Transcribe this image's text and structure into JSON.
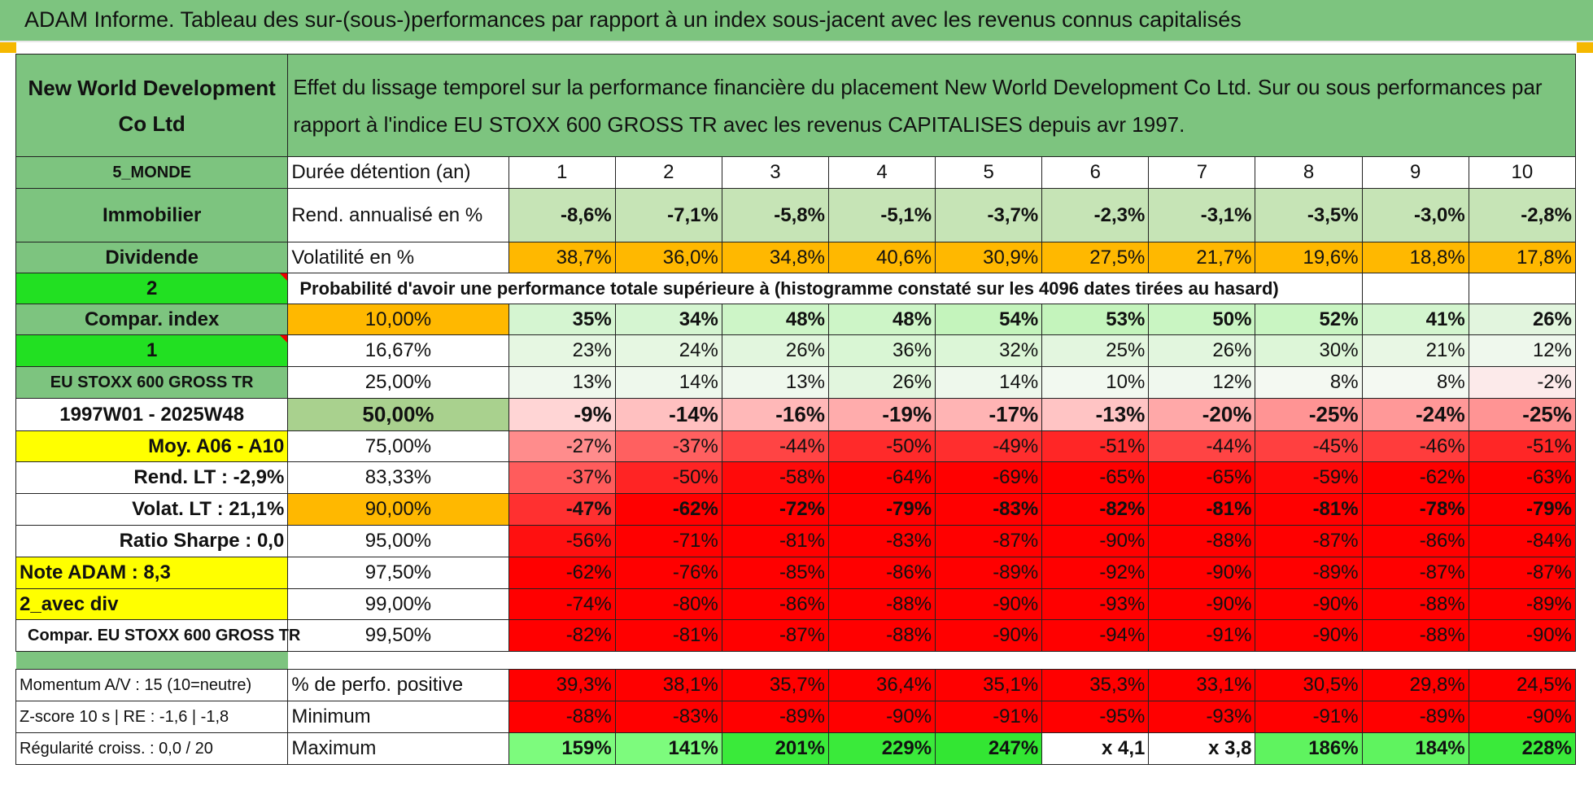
{
  "title": "ADAM Informe. Tableau des sur-(sous-)performances par rapport à un index sous-jacent avec les revenus connus capitalisés",
  "company": "New World Development Co Ltd",
  "description": "Effet du lissage temporel sur la performance financière du placement New World Development Co Ltd. Sur ou sous performances par rapport à l'indice EU STOXX 600 GROSS TR avec les revenus CAPITALISES depuis avr 1997.",
  "left": {
    "region": "5_MONDE",
    "sector": "Immobilier",
    "dividend": "Dividende",
    "selector1": "2",
    "compar_label": "Compar. index",
    "selector2": "1",
    "index_name": "EU STOXX 600 GROSS TR",
    "period": "1997W01 - 2025W48",
    "moy": "Moy. A06 - A10",
    "rend_lt": "Rend. LT :   -2,9%",
    "volat_lt": "Volat. LT :   21,1%",
    "sharpe": "Ratio Sharpe :    0,0",
    "note": "Note ADAM : 8,3",
    "avec_div": "2_avec div",
    "compar_full": "Compar. EU STOXX 600 GROSS TR",
    "momentum": "Momentum A/V : 15 (10=neutre)",
    "zscore": "Z-score 10 s | RE : -1,6 | -1,8",
    "regularite": "Régularité croiss. : 0,0 / 20"
  },
  "header": {
    "duree_label": "Durée détention (an)",
    "years": [
      "1",
      "2",
      "3",
      "4",
      "5",
      "6",
      "7",
      "8",
      "9",
      "10"
    ]
  },
  "rend": {
    "label": "Rend. annualisé en %",
    "values": [
      "-8,6%",
      "-7,1%",
      "-5,8%",
      "-5,1%",
      "-3,7%",
      "-2,3%",
      "-3,1%",
      "-3,5%",
      "-3,0%",
      "-2,8%"
    ]
  },
  "vol": {
    "label": "Volatilité en %",
    "values": [
      "38,7%",
      "36,0%",
      "34,8%",
      "40,6%",
      "30,9%",
      "27,5%",
      "21,7%",
      "19,6%",
      "18,8%",
      "17,8%"
    ]
  },
  "prob_label": "Probabilité d'avoir une performance totale supérieure à (histogramme constaté sur les 4096 dates tirées au hasard)",
  "quantiles": [
    {
      "pct": "10,00%",
      "values": [
        "35%",
        "34%",
        "48%",
        "48%",
        "54%",
        "53%",
        "50%",
        "52%",
        "41%",
        "26%"
      ],
      "bg": [
        "#d5f5d1",
        "#d5f5d1",
        "#cdf5c7",
        "#cdf5c7",
        "#c4f4bc",
        "#c4f4bc",
        "#c9f5c2",
        "#c9f5c2",
        "#d3f5ce",
        "#e2f5de"
      ]
    },
    {
      "pct": "16,67%",
      "values": [
        "23%",
        "24%",
        "26%",
        "36%",
        "32%",
        "25%",
        "26%",
        "30%",
        "21%",
        "12%"
      ],
      "bg": [
        "#e6f7e2",
        "#e6f7e2",
        "#e2f6de",
        "#d9f6d4",
        "#dcf6d7",
        "#e3f6df",
        "#e2f6de",
        "#ddf6d8",
        "#e8f7e4",
        "#eff8ed"
      ]
    },
    {
      "pct": "25,00%",
      "values": [
        "13%",
        "14%",
        "13%",
        "26%",
        "14%",
        "10%",
        "12%",
        "8%",
        "8%",
        "-2%"
      ],
      "bg": [
        "#eff8ed",
        "#eef8ec",
        "#eff8ed",
        "#e2f6de",
        "#eef8ec",
        "#f2f9f0",
        "#f0f8ee",
        "#f4f9f2",
        "#f4f9f2",
        "#fceaea"
      ]
    },
    {
      "pct": "50,00%",
      "values": [
        "-9%",
        "-14%",
        "-16%",
        "-19%",
        "-17%",
        "-13%",
        "-20%",
        "-25%",
        "-24%",
        "-25%"
      ],
      "bg": [
        "#ffd5d5",
        "#ffc0c0",
        "#ffb8b8",
        "#ffacac",
        "#ffb4b4",
        "#ffc4c4",
        "#ffa8a8",
        "#ff9494",
        "#ff9898",
        "#ff9494"
      ]
    },
    {
      "pct": "75,00%",
      "values": [
        "-27%",
        "-37%",
        "-44%",
        "-50%",
        "-49%",
        "-51%",
        "-44%",
        "-45%",
        "-46%",
        "-51%"
      ],
      "bg": [
        "#ff8c8c",
        "#ff6060",
        "#ff4444",
        "#ff2a2a",
        "#ff2e2e",
        "#ff2626",
        "#ff4444",
        "#ff4040",
        "#ff3c3c",
        "#ff2626"
      ]
    },
    {
      "pct": "83,33%",
      "values": [
        "-37%",
        "-50%",
        "-58%",
        "-64%",
        "-69%",
        "-65%",
        "-65%",
        "-59%",
        "-62%",
        "-63%"
      ],
      "bg": [
        "#ff5c5c",
        "#ff2424",
        "#ff0a0a",
        "#ff0000",
        "#ff0000",
        "#ff0000",
        "#ff0000",
        "#ff0808",
        "#ff0000",
        "#ff0000"
      ]
    },
    {
      "pct": "90,00%",
      "values": [
        "-47%",
        "-62%",
        "-72%",
        "-79%",
        "-83%",
        "-82%",
        "-81%",
        "-81%",
        "-78%",
        "-79%"
      ],
      "bg": [
        "#ff3030",
        "#ff0000",
        "#ff0000",
        "#ff0000",
        "#ff0000",
        "#ff0000",
        "#ff0000",
        "#ff0000",
        "#ff0000",
        "#ff0000"
      ]
    },
    {
      "pct": "95,00%",
      "values": [
        "-56%",
        "-71%",
        "-81%",
        "-83%",
        "-87%",
        "-90%",
        "-88%",
        "-87%",
        "-86%",
        "-84%"
      ],
      "bg": [
        "#ff1010",
        "#ff0000",
        "#ff0000",
        "#ff0000",
        "#ff0000",
        "#ff0000",
        "#ff0000",
        "#ff0000",
        "#ff0000",
        "#ff0000"
      ]
    },
    {
      "pct": "97,50%",
      "values": [
        "-62%",
        "-76%",
        "-85%",
        "-86%",
        "-89%",
        "-92%",
        "-90%",
        "-89%",
        "-87%",
        "-87%"
      ],
      "bg": [
        "#ff0000",
        "#ff0000",
        "#ff0000",
        "#ff0000",
        "#ff0000",
        "#ff0000",
        "#ff0000",
        "#ff0000",
        "#ff0000",
        "#ff0000"
      ]
    },
    {
      "pct": "99,00%",
      "values": [
        "-74%",
        "-80%",
        "-86%",
        "-88%",
        "-90%",
        "-93%",
        "-90%",
        "-90%",
        "-88%",
        "-89%"
      ],
      "bg": [
        "#ff0000",
        "#ff0000",
        "#ff0000",
        "#ff0000",
        "#ff0000",
        "#ff0000",
        "#ff0000",
        "#ff0000",
        "#ff0000",
        "#ff0000"
      ]
    },
    {
      "pct": "99,50%",
      "values": [
        "-82%",
        "-81%",
        "-87%",
        "-88%",
        "-90%",
        "-94%",
        "-91%",
        "-90%",
        "-88%",
        "-90%"
      ],
      "bg": [
        "#ff0000",
        "#ff0000",
        "#ff0000",
        "#ff0000",
        "#ff0000",
        "#ff0000",
        "#ff0000",
        "#ff0000",
        "#ff0000",
        "#ff0000"
      ]
    }
  ],
  "perf_pos": {
    "label": "% de perfo. positive",
    "values": [
      "39,3%",
      "38,1%",
      "35,7%",
      "36,4%",
      "35,1%",
      "35,3%",
      "33,1%",
      "30,5%",
      "29,8%",
      "24,5%"
    ]
  },
  "minimum": {
    "label": "Minimum",
    "values": [
      "-88%",
      "-83%",
      "-89%",
      "-90%",
      "-91%",
      "-95%",
      "-93%",
      "-91%",
      "-89%",
      "-90%"
    ]
  },
  "maximum": {
    "label": "Maximum",
    "values": [
      "159%",
      "141%",
      "201%",
      "229%",
      "247%",
      "x 4,1",
      "x 3,8",
      "186%",
      "184%",
      "228%"
    ],
    "bg": [
      "#7dfb7d",
      "#7dfb7d",
      "#3aea3a",
      "#3aea3a",
      "#33e633",
      "#ffffff",
      "#ffffff",
      "#5ff35f",
      "#5ff35f",
      "#3aea3a"
    ]
  },
  "colors": {
    "green": "#7dc47f",
    "light_green": "#c6e4b6",
    "bright_green": "#22e022",
    "yellow": "#ffff00",
    "orange": "#ffb800",
    "red": "#ff0000"
  }
}
